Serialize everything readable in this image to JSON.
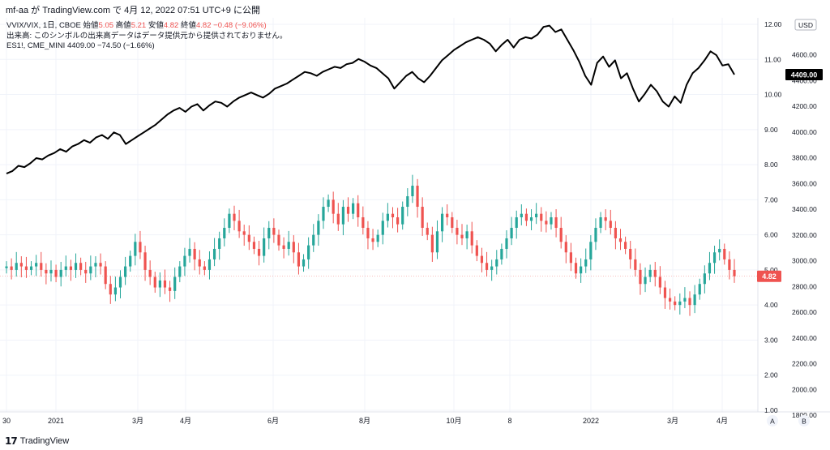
{
  "header": {
    "author_line": "mf-aa が TradingView.com で 4月 12, 2022 07:51 UTC+9 に公開"
  },
  "legend": {
    "line1_symbol": "VVIX/VIX, 1日, CBOE",
    "line1_open_label": "始値",
    "line1_open": "5.05",
    "line1_high_label": "高値",
    "line1_high": "5.21",
    "line1_low_label": "安値",
    "line1_low": "4.82",
    "line1_close_label": "終値",
    "line1_close": "4.82",
    "line1_change": "−0.48 (−9.06%)",
    "line2": "出来高: このシンボルの出来高データはデータ提供元から提供されておりません。",
    "line3_symbol": "ES1!, CME_MINI",
    "line3_value": "4409.00",
    "line3_change": "−74.50 (−1.66%)"
  },
  "footer": {
    "logo_glyph": "𝟭𝟳",
    "brand": "TradingView"
  },
  "axis_buttons": {
    "currency": "USD",
    "auto": "A",
    "bottom": "B"
  },
  "colors": {
    "up": "#26a69a",
    "down": "#ef5350",
    "line": "#000000",
    "grid": "#f0f3fa",
    "text": "#131722"
  },
  "chart_data": {
    "type": "line",
    "title": "",
    "xlabel": "",
    "ylabel": "",
    "grid": true,
    "x_ticks": [
      "30",
      "2021",
      "3月",
      "4月",
      "6月",
      "8月",
      "10月",
      "8",
      "2022",
      "3月",
      "4月"
    ],
    "left_axis_labels": [
      "12.00",
      "11.00",
      "10.00",
      "9.00",
      "8.00",
      "7.00",
      "6.00",
      "5.00",
      "4.00",
      "3.00",
      "2.00",
      "1.00"
    ],
    "right_axis_labels": [
      "4800.00",
      "4600.00",
      "4400.00",
      "4200.00",
      "4000.00",
      "3800.00",
      "3600.00",
      "3400.00",
      "3200.00",
      "3000.00",
      "2800.00",
      "2600.00",
      "2400.00",
      "2200.00",
      "2000.00",
      "1800.00"
    ],
    "ylim_ratio": [
      1.0,
      12.0
    ],
    "ylim_es": [
      1800,
      4800
    ],
    "last_ratio_label": "4.82",
    "last_es_label": "4409.00",
    "series": [
      {
        "name": "ES1!, CME_MINI",
        "type": "line",
        "values": [
          3640,
          3660,
          3700,
          3690,
          3720,
          3760,
          3750,
          3780,
          3800,
          3830,
          3810,
          3850,
          3870,
          3900,
          3880,
          3920,
          3940,
          3910,
          3960,
          3940,
          3870,
          3900,
          3930,
          3960,
          3990,
          4020,
          4060,
          4100,
          4130,
          4150,
          4120,
          4160,
          4180,
          4130,
          4170,
          4200,
          4190,
          4160,
          4200,
          4230,
          4250,
          4270,
          4250,
          4230,
          4260,
          4300,
          4320,
          4340,
          4370,
          4400,
          4430,
          4420,
          4400,
          4430,
          4450,
          4470,
          4460,
          4490,
          4500,
          4530,
          4510,
          4480,
          4460,
          4420,
          4380,
          4300,
          4350,
          4400,
          4430,
          4380,
          4350,
          4400,
          4460,
          4520,
          4560,
          4600,
          4630,
          4660,
          4680,
          4700,
          4680,
          4650,
          4590,
          4640,
          4680,
          4620,
          4680,
          4700,
          4690,
          4720,
          4780,
          4790,
          4740,
          4760,
          4680,
          4600,
          4510,
          4400,
          4330,
          4500,
          4550,
          4470,
          4520,
          4380,
          4420,
          4300,
          4200,
          4260,
          4330,
          4280,
          4200,
          4160,
          4240,
          4190,
          4330,
          4420,
          4460,
          4520,
          4590,
          4560,
          4480,
          4490,
          4409
        ]
      },
      {
        "name": "VVIX/VIX, 1日, CBOE",
        "type": "candlestick",
        "close": [
          5.1,
          5.0,
          5.2,
          5.1,
          5.0,
          5.1,
          5.2,
          5.0,
          4.9,
          5.0,
          4.8,
          5.0,
          5.1,
          5.0,
          5.2,
          5.0,
          4.9,
          5.1,
          5.2,
          5.1,
          4.6,
          4.3,
          4.5,
          4.8,
          5.1,
          5.4,
          5.8,
          5.5,
          5.0,
          4.8,
          4.5,
          4.7,
          4.5,
          4.4,
          4.8,
          5.1,
          5.4,
          5.6,
          5.3,
          5.1,
          5.0,
          5.3,
          5.6,
          5.9,
          6.2,
          6.6,
          6.4,
          6.1,
          6.0,
          5.8,
          5.6,
          5.4,
          5.9,
          6.2,
          6.0,
          5.7,
          5.6,
          5.8,
          5.5,
          5.1,
          5.3,
          5.7,
          6.0,
          6.4,
          6.8,
          7.0,
          6.6,
          6.3,
          6.8,
          6.6,
          6.9,
          6.5,
          6.2,
          5.9,
          5.8,
          6.0,
          6.4,
          6.6,
          6.5,
          6.3,
          6.8,
          7.1,
          7.4,
          6.8,
          6.2,
          6.0,
          5.5,
          6.1,
          6.6,
          6.5,
          6.2,
          6.0,
          5.9,
          6.1,
          5.7,
          5.4,
          5.2,
          5.0,
          5.1,
          5.3,
          5.6,
          5.9,
          6.2,
          6.5,
          6.6,
          6.4,
          6.5,
          6.6,
          6.4,
          6.3,
          6.5,
          6.2,
          5.8,
          5.5,
          5.2,
          4.9,
          5.1,
          5.3,
          5.8,
          6.2,
          6.5,
          6.4,
          6.2,
          5.9,
          5.8,
          5.6,
          5.3,
          5.0,
          4.6,
          4.8,
          5.0,
          4.8,
          4.5,
          4.2,
          4.1,
          4.0,
          4.1,
          4.2,
          4.0,
          4.3,
          4.6,
          4.9,
          5.2,
          5.5,
          5.6,
          5.3,
          5.0,
          4.82
        ]
      }
    ]
  }
}
